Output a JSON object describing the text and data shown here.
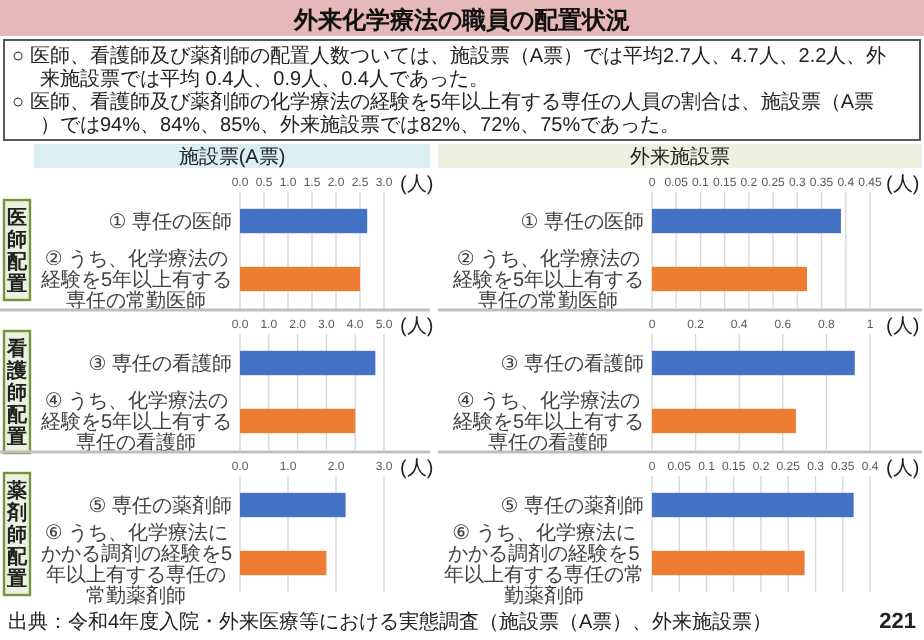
{
  "chart_data": [
    {
      "type": "other",
      "title": "外来化学療法の職員の配置状況",
      "annotations": [
        "○ 医師、看護師及び薬剤師の配置人数ついては、施設票（A票）では平均2.7人、4.7人、2.2人、外来施設票では平均 0.4人、0.9人、0.4人であった。",
        "○ 医師、看護師及び薬剤師の化学療法の経験を5年以上有する専任の人員の割合は、施設票（A票）では94%、84%、85%、外来施設票では82%、72%、75%であった。",
        "出典：令和4年度入院・外来医療等における実態調査（施設票（A票）、外来施設票）",
        "221"
      ]
    },
    {
      "type": "bar",
      "orientation": "horizontal",
      "title": "施設票(A票)",
      "ylabel": "医師配置",
      "xlabel": "(人)",
      "grid": "x",
      "categories": [
        "① 専任の医師",
        "② うち、化学療法の経験を5年以上有する専任の常勤医師"
      ],
      "values": [
        2.65,
        2.5
      ],
      "colors": [
        "#4472c4",
        "#ed7d31"
      ],
      "xlim": [
        0,
        3
      ],
      "xticks": [
        {
          "value": 0,
          "label": "0.0"
        },
        {
          "value": 0.5,
          "label": "0.5"
        },
        {
          "value": 1,
          "label": "1.0"
        },
        {
          "value": 1.5,
          "label": "1.5"
        },
        {
          "value": 2,
          "label": "2.0"
        },
        {
          "value": 2.5,
          "label": "2.5"
        },
        {
          "value": 3,
          "label": "3.0"
        }
      ]
    },
    {
      "type": "bar",
      "orientation": "horizontal",
      "title": "外来施設票",
      "xlabel": "(人)",
      "grid": "x",
      "categories": [
        "① 専任の医師",
        "② うち、化学療法の経験を5年以上有する専任の常勤医師"
      ],
      "values": [
        0.39,
        0.32
      ],
      "colors": [
        "#4472c4",
        "#ed7d31"
      ],
      "xlim": [
        0,
        0.45
      ],
      "xticks": [
        0,
        0.05,
        0.1,
        0.15,
        0.2,
        0.25,
        0.3,
        0.35,
        0.4,
        0.45
      ]
    },
    {
      "type": "bar",
      "orientation": "horizontal",
      "ylabel": "看護師配置",
      "xlabel": "(人)",
      "grid": "x",
      "categories": [
        "③ 専任の看護師",
        "④ うち、化学療法の経験を5年以上有する専任の看護師"
      ],
      "values": [
        4.7,
        4.0
      ],
      "colors": [
        "#4472c4",
        "#ed7d31"
      ],
      "xlim": [
        0,
        5
      ],
      "xticks": [
        {
          "value": 0,
          "label": "0.0"
        },
        {
          "value": 1,
          "label": "1.0"
        },
        {
          "value": 2,
          "label": "2.0"
        },
        {
          "value": 3,
          "label": "3.0"
        },
        {
          "value": 4,
          "label": "4.0"
        },
        {
          "value": 5,
          "label": "5.0"
        }
      ]
    },
    {
      "type": "bar",
      "orientation": "horizontal",
      "xlabel": "(人)",
      "grid": "x",
      "categories": [
        "③ 専任の看護師",
        "④ うち、化学療法の経験を5年以上有する専任の看護師"
      ],
      "values": [
        0.93,
        0.66
      ],
      "colors": [
        "#4472c4",
        "#ed7d31"
      ],
      "xlim": [
        0,
        1
      ],
      "xticks": [
        0,
        0.2,
        0.4,
        0.6,
        0.8,
        1
      ]
    },
    {
      "type": "bar",
      "orientation": "horizontal",
      "ylabel": "薬剤師配置",
      "xlabel": "(人)",
      "grid": "x",
      "categories": [
        "⑤ 専任の薬剤師",
        "⑥ うち、化学療法にかかる調剤の経験を5年以上有する専任の常勤薬剤師"
      ],
      "values": [
        2.2,
        1.8
      ],
      "colors": [
        "#4472c4",
        "#ed7d31"
      ],
      "xlim": [
        0,
        3
      ],
      "xticks": [
        {
          "value": 0,
          "label": "0.0"
        },
        {
          "value": 1,
          "label": "1.0"
        },
        {
          "value": 2,
          "label": "2.0"
        },
        {
          "value": 3,
          "label": "3.0"
        }
      ]
    },
    {
      "type": "bar",
      "orientation": "horizontal",
      "xlabel": "(人)",
      "grid": "x",
      "categories": [
        "⑤ 専任の薬剤師",
        "⑥ うち、化学療法にかかる調剤の経験を5年以上有する専任の常勤薬剤師"
      ],
      "values": [
        0.37,
        0.28
      ],
      "colors": [
        "#4472c4",
        "#ed7d31"
      ],
      "xlim": [
        0,
        0.4
      ],
      "xticks": [
        0,
        0.05,
        0.1,
        0.15,
        0.2,
        0.25,
        0.3,
        0.35,
        0.4
      ]
    }
  ]
}
